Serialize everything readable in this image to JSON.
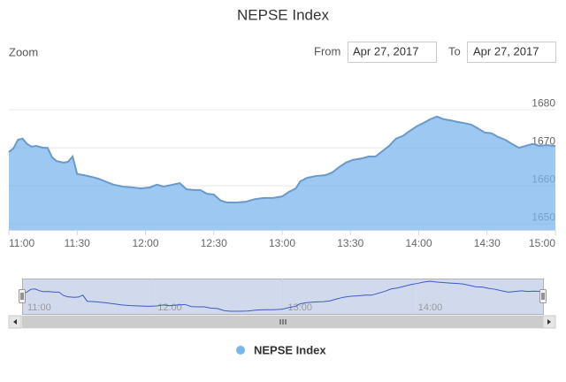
{
  "ui": {
    "zoom_label": "Zoom",
    "from_label": "From",
    "from_value": "Apr 27, 2017",
    "to_label": "To",
    "to_value": "Apr 27, 2017"
  },
  "chart_data": {
    "type": "area",
    "title": "NEPSE Index",
    "x": [
      660,
      662,
      664,
      666,
      668,
      670,
      672,
      675,
      677,
      679,
      681,
      684,
      686,
      688,
      690,
      693,
      696,
      698,
      700,
      703,
      706,
      710,
      714,
      718,
      722,
      725,
      728,
      732,
      735,
      738,
      741,
      744,
      747,
      750,
      753,
      756,
      760,
      764,
      768,
      772,
      776,
      780,
      783,
      786,
      788,
      791,
      795,
      799,
      802,
      805,
      808,
      811,
      815,
      818,
      821,
      824,
      827,
      830,
      833,
      836,
      839,
      842,
      845,
      848,
      851,
      854,
      857,
      860,
      863,
      866,
      869,
      872,
      875,
      878,
      881,
      884,
      887,
      890,
      893,
      896,
      900
    ],
    "series": [
      {
        "name": "NEPSE Index",
        "color": "#7cb5ec",
        "values": [
          1668.9,
          1669.8,
          1672.1,
          1672.4,
          1671.0,
          1670.3,
          1670.5,
          1670.0,
          1670.0,
          1667.5,
          1666.5,
          1666.1,
          1666.3,
          1667.7,
          1663.1,
          1662.8,
          1662.4,
          1662.1,
          1661.7,
          1661.0,
          1660.3,
          1659.8,
          1659.6,
          1659.3,
          1659.6,
          1660.3,
          1659.8,
          1660.3,
          1660.7,
          1659.1,
          1658.9,
          1658.9,
          1657.9,
          1657.7,
          1656.1,
          1655.6,
          1655.6,
          1655.8,
          1656.5,
          1656.8,
          1656.8,
          1657.2,
          1658.4,
          1659.3,
          1661.2,
          1662.1,
          1662.6,
          1662.8,
          1663.5,
          1664.9,
          1666.1,
          1666.8,
          1667.2,
          1667.7,
          1667.7,
          1669.1,
          1670.5,
          1672.4,
          1673.1,
          1674.4,
          1675.6,
          1676.5,
          1677.5,
          1678.2,
          1677.5,
          1677.2,
          1676.8,
          1676.5,
          1676.1,
          1675.1,
          1674.0,
          1673.8,
          1672.8,
          1672.1,
          1671.0,
          1670.0,
          1670.5,
          1671.0,
          1670.5,
          1670.7,
          1670.5
        ]
      }
    ],
    "xlim": [
      660,
      900
    ],
    "ylim": [
      1648.4,
      1688.4
    ],
    "xticks": [
      {
        "value": 660,
        "label": "11:00"
      },
      {
        "value": 690,
        "label": "11:30"
      },
      {
        "value": 720,
        "label": "12:00"
      },
      {
        "value": 750,
        "label": "12:30"
      },
      {
        "value": 780,
        "label": "13:00"
      },
      {
        "value": 810,
        "label": "13:30"
      },
      {
        "value": 840,
        "label": "14:00"
      },
      {
        "value": 870,
        "label": "14:30"
      },
      {
        "value": 900,
        "label": "15:00"
      }
    ],
    "yticks": [
      1650,
      1660,
      1670,
      1680
    ],
    "grid": true,
    "legend": "bottom",
    "navigator": {
      "color": "#3a5bc4",
      "xticks": [
        {
          "value": 660,
          "label": "11:00"
        },
        {
          "value": 720,
          "label": "12:00"
        },
        {
          "value": 780,
          "label": "13:00"
        },
        {
          "value": 840,
          "label": "14:00"
        }
      ]
    }
  }
}
